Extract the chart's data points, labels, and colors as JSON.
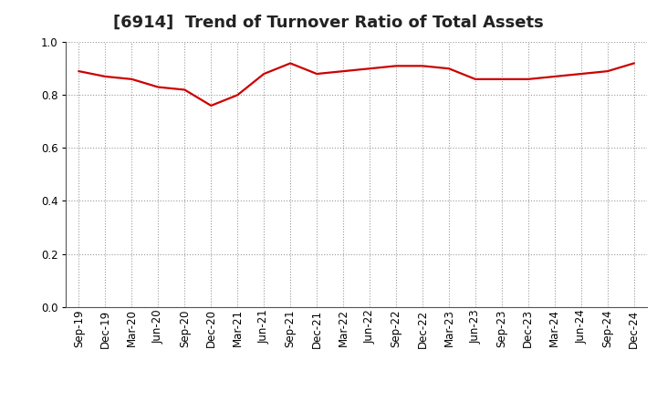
{
  "title": "[6914]  Trend of Turnover Ratio of Total Assets",
  "x_labels": [
    "Sep-19",
    "Dec-19",
    "Mar-20",
    "Jun-20",
    "Sep-20",
    "Dec-20",
    "Mar-21",
    "Jun-21",
    "Sep-21",
    "Dec-21",
    "Mar-22",
    "Jun-22",
    "Sep-22",
    "Dec-22",
    "Mar-23",
    "Jun-23",
    "Sep-23",
    "Dec-23",
    "Mar-24",
    "Jun-24",
    "Sep-24",
    "Dec-24"
  ],
  "y_values": [
    0.89,
    0.87,
    0.86,
    0.83,
    0.82,
    0.76,
    0.8,
    0.88,
    0.92,
    0.88,
    0.89,
    0.9,
    0.91,
    0.91,
    0.9,
    0.86,
    0.86,
    0.86,
    0.87,
    0.88,
    0.89,
    0.92
  ],
  "line_color": "#cc0000",
  "ylim": [
    0.0,
    1.0
  ],
  "yticks": [
    0.0,
    0.2,
    0.4,
    0.6,
    0.8,
    1.0
  ],
  "background_color": "#ffffff",
  "grid_color": "#999999",
  "title_fontsize": 13,
  "tick_fontsize": 8.5
}
